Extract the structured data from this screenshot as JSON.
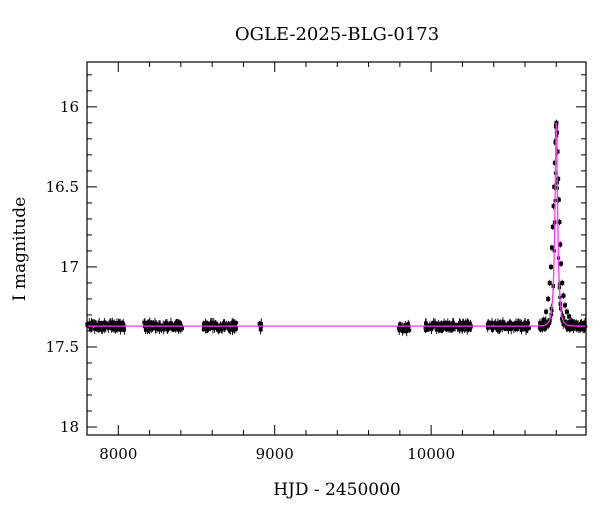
{
  "chart_data": {
    "type": "scatter",
    "title": "OGLE-2025-BLG-0173",
    "xlabel": "HJD - 2450000",
    "ylabel": "I magnitude",
    "xlim": [
      7800,
      10990
    ],
    "ylim": [
      18.05,
      15.72
    ],
    "y_inverted": true,
    "x_ticks": [
      8000,
      9000,
      10000
    ],
    "y_ticks": [
      16,
      16.5,
      17,
      17.5,
      18
    ],
    "y_tick_labels": [
      "16",
      "16.5",
      "17",
      "17.5",
      "18"
    ],
    "x_tick_labels": [
      "8000",
      "9000",
      "10000"
    ],
    "grid": false,
    "legend": "none",
    "colors": {
      "data": "#000000",
      "model": "#ff33ff"
    },
    "model": {
      "name": "",
      "baseline_mag": 17.37,
      "peak_time": 10800,
      "peak_mag": 16.1,
      "timescale_days": 18
    },
    "observing_seasons": [
      {
        "start": 7800,
        "end": 8040,
        "mag": 17.37
      },
      {
        "start": 8160,
        "end": 8410,
        "mag": 17.37
      },
      {
        "start": 8540,
        "end": 8760,
        "mag": 17.37
      },
      {
        "start": 8900,
        "end": 8920,
        "mag": 17.37
      },
      {
        "start": 9790,
        "end": 9870,
        "mag": 17.38
      },
      {
        "start": 9960,
        "end": 10260,
        "mag": 17.37
      },
      {
        "start": 10360,
        "end": 10630,
        "mag": 17.37
      },
      {
        "start": 10690,
        "end": 10990,
        "mag": "model"
      }
    ],
    "event_points": [
      {
        "x": 10700,
        "y": 17.36
      },
      {
        "x": 10720,
        "y": 17.33
      },
      {
        "x": 10735,
        "y": 17.28
      },
      {
        "x": 10748,
        "y": 17.2
      },
      {
        "x": 10758,
        "y": 17.1
      },
      {
        "x": 10766,
        "y": 17.0
      },
      {
        "x": 10772,
        "y": 16.88
      },
      {
        "x": 10778,
        "y": 16.75
      },
      {
        "x": 10783,
        "y": 16.62
      },
      {
        "x": 10787,
        "y": 16.5
      },
      {
        "x": 10791,
        "y": 16.35
      },
      {
        "x": 10795,
        "y": 16.22
      },
      {
        "x": 10798,
        "y": 16.12
      },
      {
        "x": 10801,
        "y": 16.1
      },
      {
        "x": 10804,
        "y": 16.16
      },
      {
        "x": 10808,
        "y": 16.28
      },
      {
        "x": 10812,
        "y": 16.45
      },
      {
        "x": 10816,
        "y": 16.58
      },
      {
        "x": 10820,
        "y": 16.72
      },
      {
        "x": 10825,
        "y": 16.86
      },
      {
        "x": 10830,
        "y": 16.98
      },
      {
        "x": 10838,
        "y": 17.1
      },
      {
        "x": 10846,
        "y": 17.18
      },
      {
        "x": 10856,
        "y": 17.24
      },
      {
        "x": 10868,
        "y": 17.28
      },
      {
        "x": 10882,
        "y": 17.31
      },
      {
        "x": 10900,
        "y": 17.34
      },
      {
        "x": 10925,
        "y": 17.36
      },
      {
        "x": 10955,
        "y": 17.37
      },
      {
        "x": 10980,
        "y": 17.38
      }
    ]
  }
}
